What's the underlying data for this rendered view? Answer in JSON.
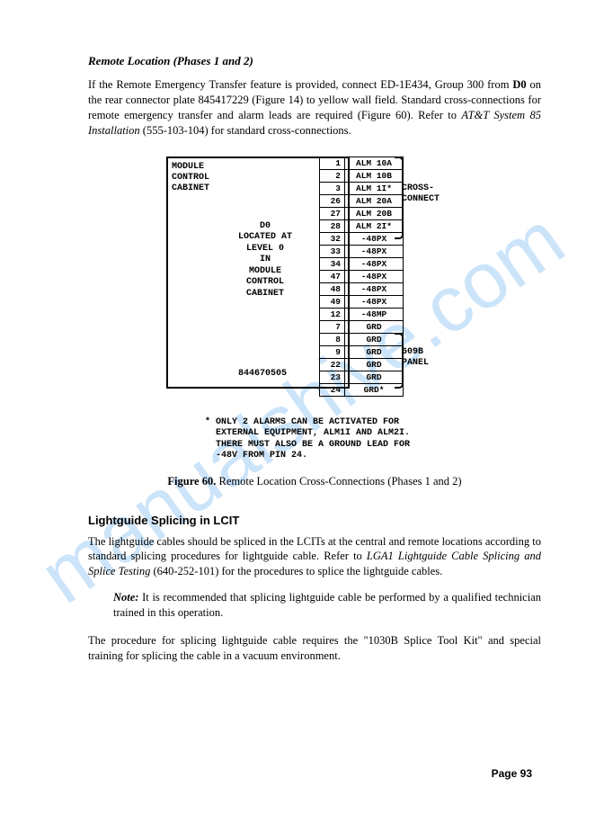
{
  "section_title": "Remote Location (Phases 1 and 2)",
  "intro_part1": "If the Remote Emergency Transfer feature is provided, connect ED-1E434, Group 300 from ",
  "intro_bold": "D0",
  "intro_part2": " on the rear connector plate 845417229 (Figure 14) to yellow wall field. Standard cross-connections for remote emergency transfer and alarm leads are required (Figure 60). Refer to ",
  "intro_ital": "AT&T System 85 Installation",
  "intro_part3": " (555-103-104) for standard cross-connections.",
  "diagram": {
    "left_label": "MODULE\nCONTROL\nCABINET",
    "center_label": "D0\nLOCATED AT\nLEVEL 0\nIN\nMODULE\nCONTROL\nCABINET",
    "partnum": "844670505",
    "pins": [
      {
        "n": "1",
        "l": "ALM 10A"
      },
      {
        "n": "2",
        "l": "ALM 10B"
      },
      {
        "n": "3",
        "l": "ALM 1I*"
      },
      {
        "n": "26",
        "l": "ALM 20A"
      },
      {
        "n": "27",
        "l": "ALM 20B"
      },
      {
        "n": "28",
        "l": "ALM 2I*"
      },
      {
        "n": "32",
        "l": "-48PX"
      },
      {
        "n": "33",
        "l": "-48PX"
      },
      {
        "n": "34",
        "l": "-48PX"
      },
      {
        "n": "47",
        "l": "-48PX"
      },
      {
        "n": "48",
        "l": "-48PX"
      },
      {
        "n": "49",
        "l": "-48PX"
      },
      {
        "n": "12",
        "l": "-48MP"
      },
      {
        "n": "7",
        "l": "GRD"
      },
      {
        "n": "8",
        "l": "GRD"
      },
      {
        "n": "9",
        "l": "GRD"
      },
      {
        "n": "22",
        "l": "GRD"
      },
      {
        "n": "23",
        "l": "GRD"
      },
      {
        "n": "24",
        "l": "GRD*"
      }
    ],
    "right_label_1": "CROSS-\nCONNECT",
    "right_label_2": "609B\nPANEL",
    "footnote": "* ONLY 2 ALARMS CAN BE ACTIVATED FOR\n  EXTERNAL EQUIPMENT, ALM1I AND ALM2I.\n  THERE MUST ALSO BE A GROUND LEAD FOR\n  -48V FROM PIN 24."
  },
  "caption_bold": "Figure 60.",
  "caption_rest": "  Remote Location Cross-Connections (Phases 1 and 2)",
  "h2": "Lightguide Splicing in LCIT",
  "para2_a": "The lightguide cables should be spliced in the LCITs at the central and remote locations according to standard splicing procedures for lightguide cable. Refer to ",
  "para2_ital": "LGA1 Lightguide Cable Splicing and Splice Testing",
  "para2_b": " (640-252-101) for the procedures to splice the lightguide cables.",
  "note_bold": "Note:",
  "note_rest": " It is recommended that splicing lightguide cable be performed by a qualified technician trained in this operation.",
  "para3": "The procedure for splicing lightguide cable requires the \"1030B Splice Tool Kit\" and special training for splicing the cable in a vacuum environment.",
  "pagenum": "Page 93",
  "watermark": "manualshive.com"
}
